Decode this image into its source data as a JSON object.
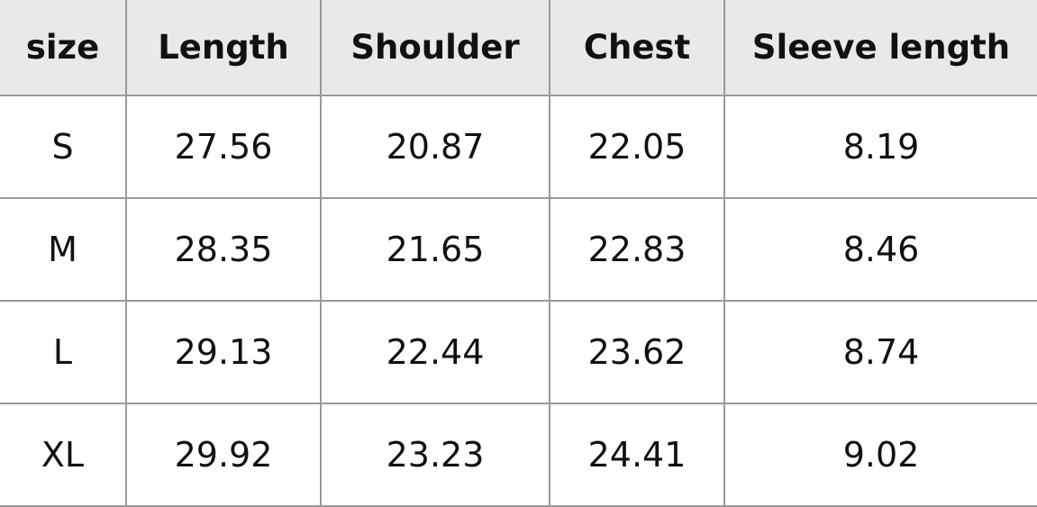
{
  "table": {
    "header": [
      "size",
      "Length",
      "Shoulder",
      "Chest",
      "Sleeve length"
    ],
    "rows": [
      [
        "S",
        27.56,
        20.87,
        22.05,
        8.19
      ],
      [
        "M",
        28.35,
        21.65,
        22.83,
        8.46
      ],
      [
        "L",
        29.13,
        22.44,
        23.62,
        8.74
      ],
      [
        "XL",
        29.92,
        23.23,
        24.41,
        9.02
      ]
    ]
  }
}
